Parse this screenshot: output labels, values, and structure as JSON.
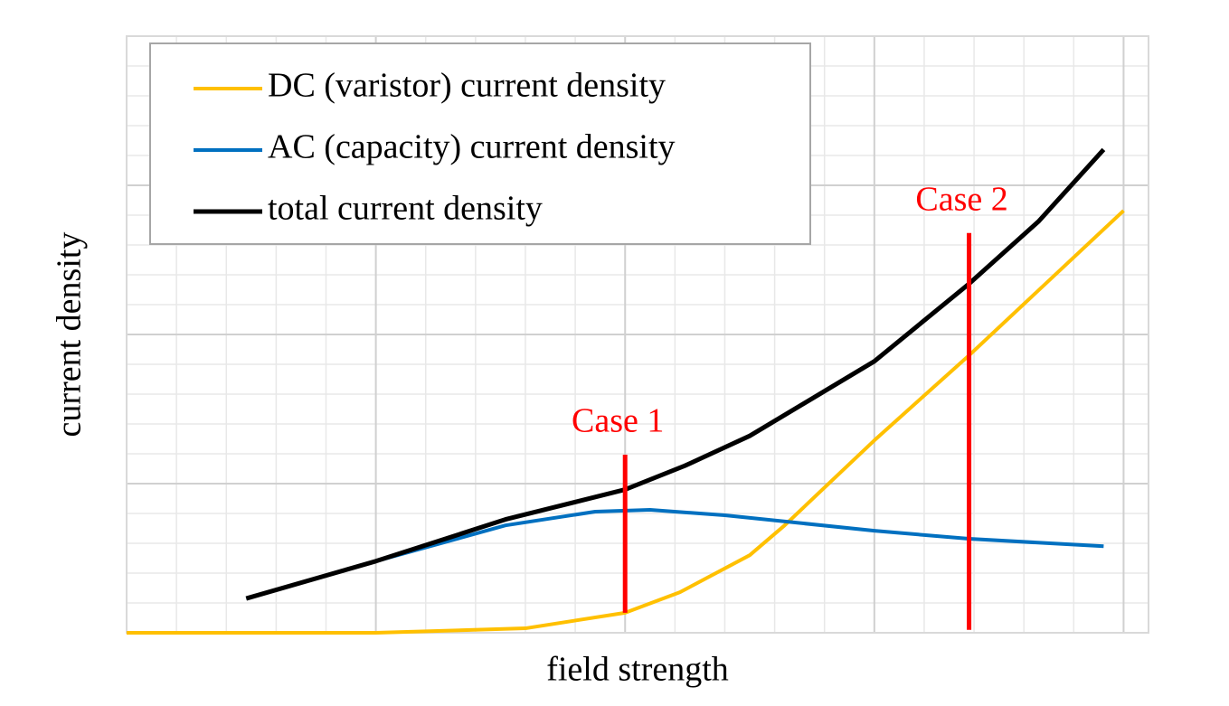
{
  "chart_data": {
    "type": "line",
    "xlabel": "field strength",
    "ylabel": "current density",
    "xlim": [
      0,
      20.5
    ],
    "ylim": [
      0,
      20
    ],
    "xticks": [
      0,
      5,
      10,
      15,
      20
    ],
    "yticks": [
      0,
      5,
      10,
      15,
      20
    ],
    "xminorticks": [
      1,
      2,
      3,
      4,
      6,
      7,
      8,
      9,
      11,
      12,
      13,
      14,
      16,
      17,
      18,
      19
    ],
    "yminorticks": [
      1,
      2,
      3,
      4,
      6,
      7,
      8,
      9,
      11,
      12,
      13,
      14,
      16,
      17,
      18,
      19
    ],
    "grid": true,
    "legend": "upper left",
    "series": [
      {
        "name": "DC (varistor) current density",
        "color": "#ffc000",
        "x": [
          0,
          5,
          8,
          10,
          11.1,
          12.5,
          13.2,
          15,
          16.9,
          20
        ],
        "values": [
          0,
          0,
          0.15,
          0.67,
          1.36,
          2.6,
          3.6,
          6.45,
          9.3,
          14.15
        ]
      },
      {
        "name": "AC (capacity) current density",
        "color": "#0070c0",
        "x": [
          2.4,
          5,
          7.6,
          9.4,
          10.5,
          12,
          15,
          16.9,
          19.6
        ],
        "values": [
          1.15,
          2.4,
          3.6,
          4.06,
          4.12,
          3.94,
          3.42,
          3.15,
          2.9
        ]
      },
      {
        "name": "total current density",
        "color": "#000000",
        "x": [
          2.4,
          5,
          7.6,
          10,
          11.2,
          12.5,
          13.8,
          15,
          16.9,
          18.3,
          19.6
        ],
        "values": [
          1.15,
          2.4,
          3.8,
          4.8,
          5.6,
          6.6,
          7.9,
          9.1,
          11.7,
          13.8,
          16.2
        ]
      }
    ],
    "annotations": [
      {
        "label": "Case 1",
        "x": 10,
        "y": [
          0.67,
          5.97
        ],
        "color": "#ff0000"
      },
      {
        "label": "Case 2",
        "x": 16.9,
        "y": [
          0.1,
          13.4
        ],
        "color": "#ff0000"
      }
    ]
  }
}
